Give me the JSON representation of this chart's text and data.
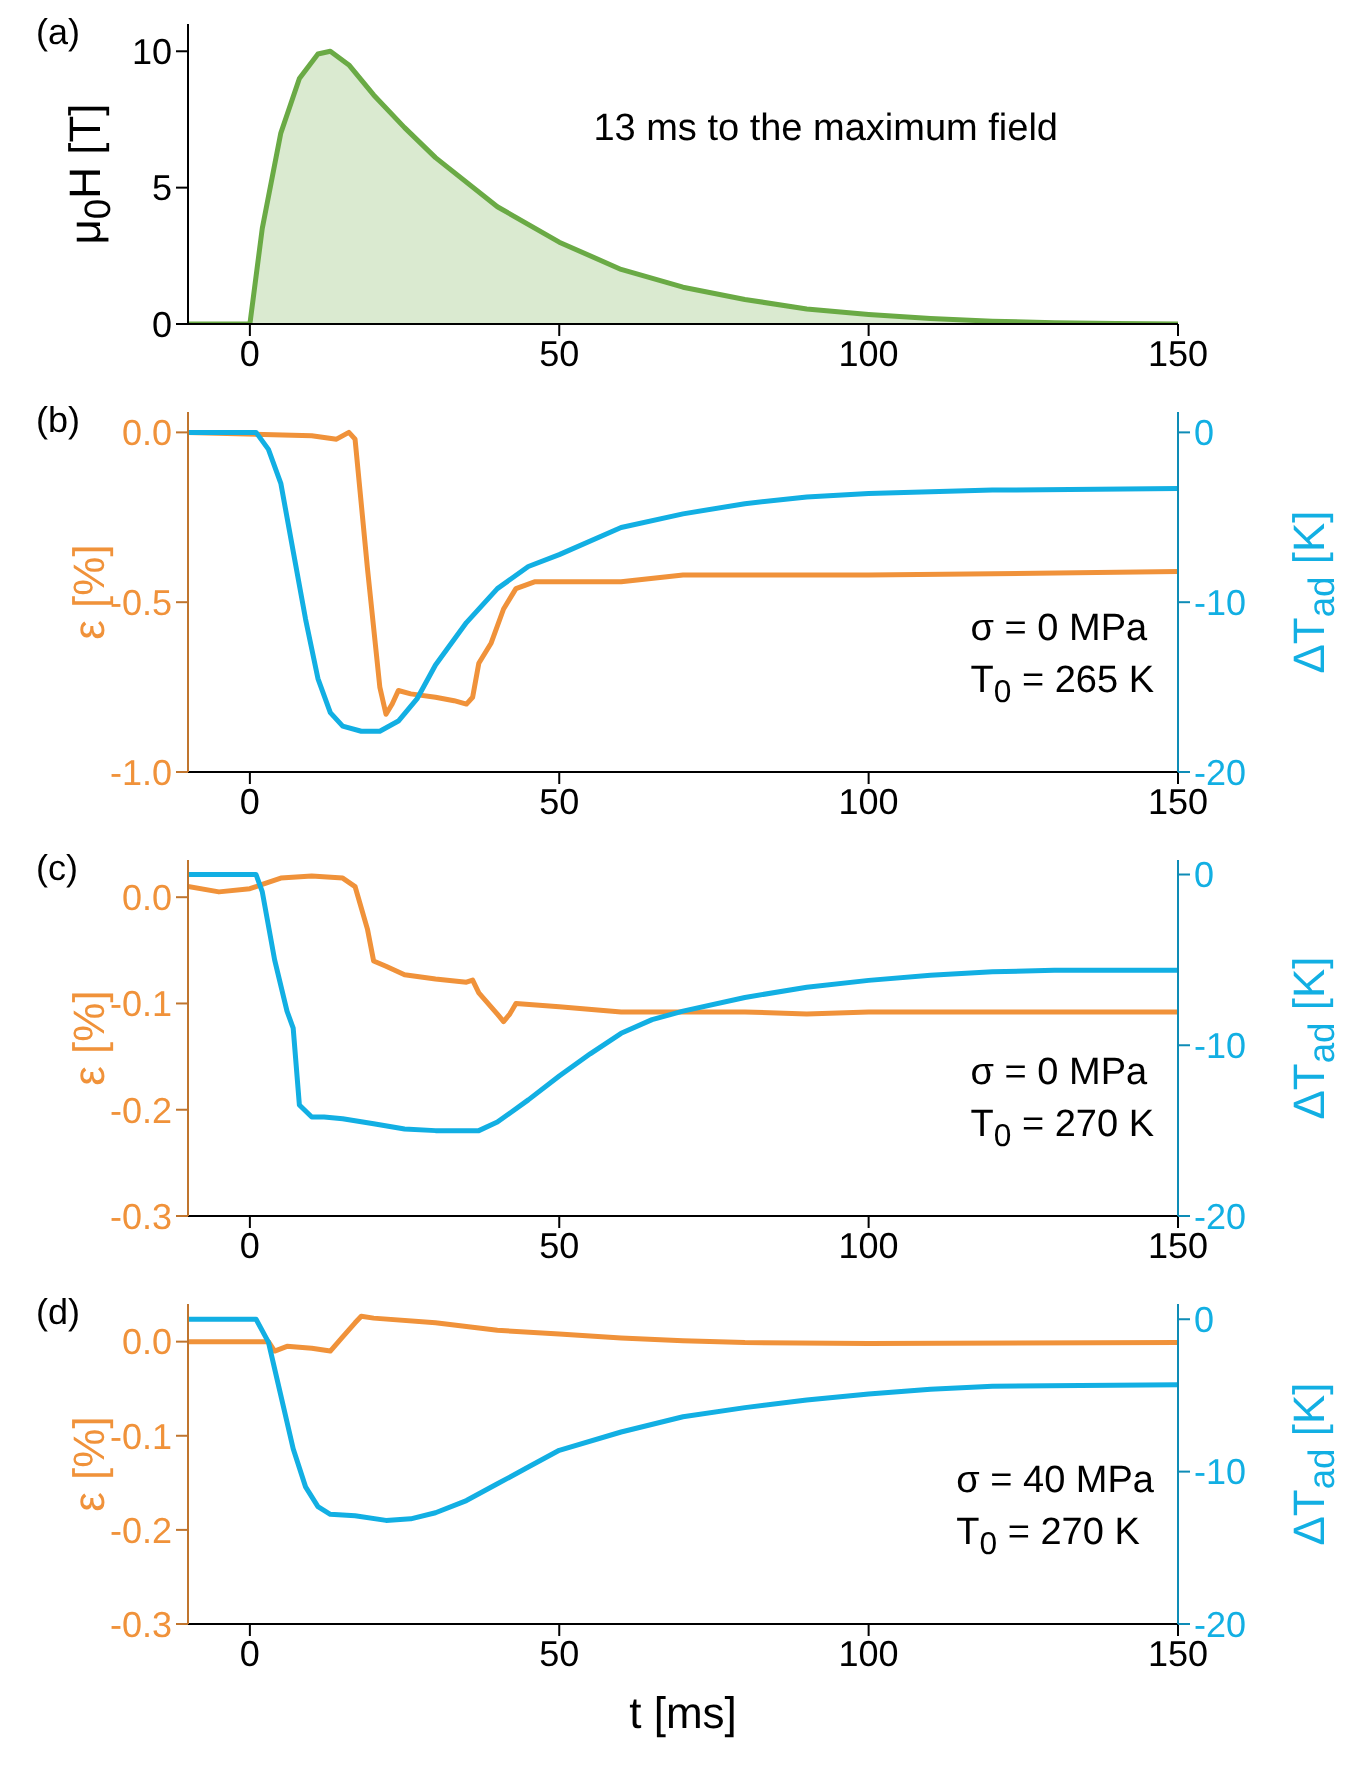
{
  "chart_data": [
    {
      "type": "area",
      "title": "(a)",
      "ylabel": "μ$_{0}$H [T]",
      "annotations": [
        "13 ms to the maximum field"
      ],
      "xlim": [
        -10,
        150
      ],
      "xticks": [
        0,
        50,
        100,
        150
      ],
      "ylim": [
        0,
        11
      ],
      "yticks": [
        0,
        5,
        10
      ],
      "series": [
        {
          "color": "#6aaa45",
          "x": [
            -10,
            0,
            2,
            5,
            8,
            11,
            13,
            16,
            20,
            25,
            30,
            40,
            50,
            60,
            70,
            80,
            90,
            100,
            110,
            120,
            130,
            140,
            150
          ],
          "values": [
            0,
            0,
            3.5,
            7,
            9,
            9.9,
            10,
            9.5,
            8.4,
            7.2,
            6.1,
            4.3,
            3.0,
            2.0,
            1.35,
            0.9,
            0.55,
            0.35,
            0.2,
            0.1,
            0.05,
            0.02,
            0
          ]
        }
      ]
    },
    {
      "type": "line",
      "title": "(b)",
      "ylabel": "ε [%]",
      "y2label": "ΔT$_{ad}$ [K]",
      "annotations": [
        "σ = 0 MPa",
        "T$_{0}$ = 265 K"
      ],
      "xlim": [
        -10,
        150
      ],
      "xticks": [
        0,
        50,
        100,
        150
      ],
      "ylim": [
        -1,
        0.06
      ],
      "yticks": [
        {
          "value": -1,
          "label": "-1.0"
        },
        -0.5,
        {
          "value": 0,
          "label": "0.0"
        }
      ],
      "y2lim": [
        -20,
        1.2
      ],
      "y2ticks": [
        -20,
        -10,
        0
      ],
      "series": [
        {
          "color": "#f0923a",
          "x": [
            -10,
            10,
            14,
            16,
            17,
            19,
            21,
            22,
            23,
            24,
            26,
            30,
            33,
            35,
            36,
            37,
            39,
            41,
            43,
            46,
            60,
            70,
            100,
            150
          ],
          "values": [
            0,
            -0.01,
            -0.02,
            0,
            -0.02,
            -0.4,
            -0.75,
            -0.83,
            -0.8,
            -0.76,
            -0.77,
            -0.78,
            -0.79,
            -0.8,
            -0.78,
            -0.68,
            -0.62,
            -0.52,
            -0.46,
            -0.44,
            -0.44,
            -0.42,
            -0.42,
            -0.41
          ]
        },
        {
          "color": "#12afe3",
          "axis": "y2",
          "x": [
            -10,
            1,
            3,
            5,
            7,
            9,
            11,
            13,
            15,
            18,
            21,
            24,
            27,
            30,
            35,
            40,
            45,
            50,
            60,
            70,
            80,
            90,
            100,
            120,
            150
          ],
          "values": [
            0,
            0,
            -1,
            -3,
            -7,
            -11,
            -14.5,
            -16.5,
            -17.3,
            -17.6,
            -17.6,
            -17,
            -15.7,
            -13.7,
            -11.2,
            -9.2,
            -7.9,
            -7.2,
            -5.6,
            -4.8,
            -4.2,
            -3.8,
            -3.6,
            -3.4,
            -3.3
          ]
        }
      ]
    },
    {
      "type": "line",
      "title": "(c)",
      "ylabel": "ε [%]",
      "y2label": "ΔT$_{ad}$ [K]",
      "annotations": [
        "σ = 0 MPa",
        "T$_{0}$ = 270 K"
      ],
      "xlim": [
        -10,
        150
      ],
      "xticks": [
        0,
        50,
        100,
        150
      ],
      "ylim": [
        -0.3,
        0.035
      ],
      "yticks": [
        {
          "value": -0.3,
          "label": "-0.3"
        },
        -0.2,
        -0.1,
        {
          "value": 0,
          "label": "0.0"
        }
      ],
      "y2lim": [
        -20,
        0.85
      ],
      "y2ticks": [
        -20,
        -10,
        0
      ],
      "series": [
        {
          "color": "#f0923a",
          "x": [
            -10,
            -5,
            0,
            2,
            5,
            10,
            15,
            17,
            19,
            20,
            22,
            25,
            30,
            35,
            36,
            37,
            40,
            41,
            42,
            43,
            50,
            60,
            80,
            90,
            100,
            150
          ],
          "values": [
            0.01,
            0.005,
            0.008,
            0.012,
            0.018,
            0.02,
            0.018,
            0.01,
            -0.03,
            -0.06,
            -0.065,
            -0.073,
            -0.077,
            -0.08,
            -0.078,
            -0.09,
            -0.11,
            -0.117,
            -0.11,
            -0.1,
            -0.103,
            -0.108,
            -0.108,
            -0.11,
            -0.108,
            -0.108
          ]
        },
        {
          "color": "#12afe3",
          "axis": "y2",
          "x": [
            -10,
            1,
            2,
            4,
            6,
            7,
            8,
            10,
            12,
            15,
            20,
            25,
            30,
            37,
            40,
            45,
            50,
            55,
            60,
            65,
            70,
            80,
            90,
            100,
            110,
            120,
            130,
            150
          ],
          "values": [
            0,
            0,
            -1,
            -5,
            -8,
            -9,
            -13.5,
            -14.2,
            -14.2,
            -14.3,
            -14.6,
            -14.9,
            -15,
            -15,
            -14.5,
            -13.2,
            -11.8,
            -10.5,
            -9.3,
            -8.5,
            -8,
            -7.2,
            -6.6,
            -6.2,
            -5.9,
            -5.7,
            -5.6,
            -5.6
          ]
        }
      ]
    },
    {
      "type": "line",
      "title": "(d)",
      "xlabel": "t [ms]",
      "ylabel": "ε [%]",
      "y2label": "ΔT$_{ad}$ [K]",
      "annotations": [
        "σ = 40 MPa",
        "T$_{0}$ = 270 K"
      ],
      "xlim": [
        -10,
        150
      ],
      "xticks": [
        0,
        50,
        100,
        150
      ],
      "ylim": [
        -0.3,
        0.04
      ],
      "yticks": [
        {
          "value": -0.3,
          "label": "-0.3"
        },
        -0.2,
        -0.1,
        {
          "value": 0,
          "label": "0.0"
        }
      ],
      "y2lim": [
        -20,
        1
      ],
      "y2ticks": [
        -20,
        -10,
        0
      ],
      "series": [
        {
          "color": "#f0923a",
          "x": [
            -10,
            3,
            4,
            6,
            10,
            13,
            15,
            17,
            18,
            20,
            30,
            40,
            50,
            60,
            70,
            80,
            100,
            150
          ],
          "values": [
            0,
            0,
            -0.01,
            -0.005,
            -0.007,
            -0.01,
            0.005,
            0.02,
            0.027,
            0.025,
            0.02,
            0.012,
            0.008,
            0.004,
            0.001,
            -0.001,
            -0.002,
            -0.001
          ]
        },
        {
          "color": "#12afe3",
          "axis": "y2",
          "x": [
            -10,
            1,
            3,
            5,
            7,
            9,
            11,
            13,
            17,
            22,
            26,
            30,
            35,
            40,
            45,
            50,
            60,
            70,
            80,
            88,
            90,
            100,
            110,
            120,
            150
          ],
          "values": [
            0,
            0,
            -1.5,
            -5,
            -8.5,
            -11,
            -12.3,
            -12.8,
            -12.9,
            -13.2,
            -13.1,
            -12.7,
            -11.9,
            -10.8,
            -9.7,
            -8.6,
            -7.4,
            -6.4,
            -5.8,
            -5.4,
            -5.3,
            -4.9,
            -4.6,
            -4.4,
            -4.3
          ]
        }
      ]
    }
  ]
}
